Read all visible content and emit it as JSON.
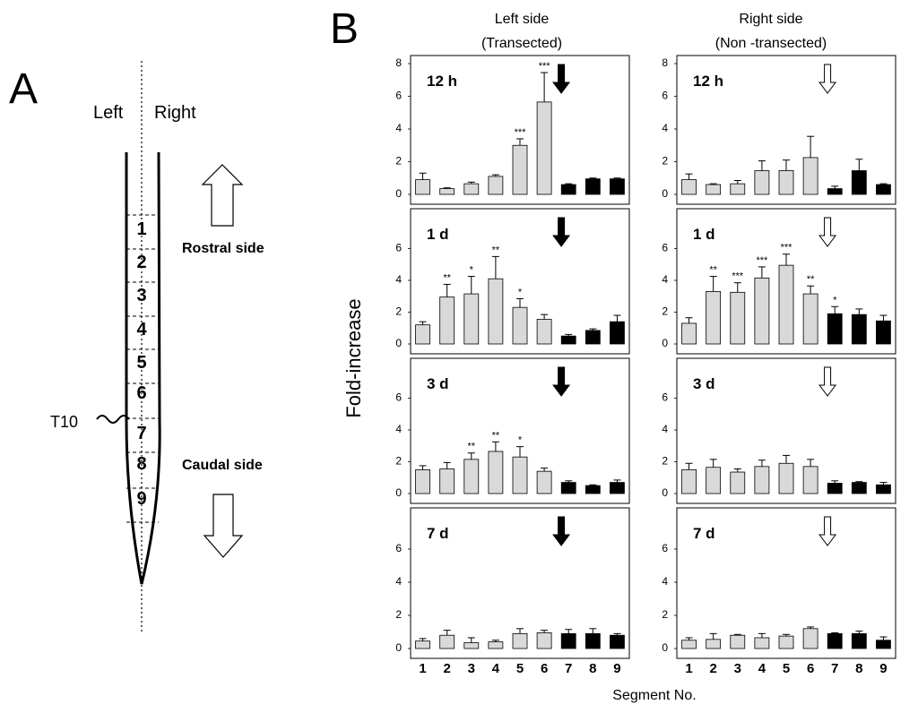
{
  "panel_labels": [
    "A",
    "B"
  ],
  "diagram": {
    "left": "Left",
    "right": "Right",
    "rostral": "Rostral side",
    "caudal": "Caudal side",
    "level": "T10",
    "segments": [
      "1",
      "2",
      "3",
      "4",
      "5",
      "6",
      "7",
      "8",
      "9"
    ]
  },
  "headers": [
    [
      "Left side",
      "(Transected)"
    ],
    [
      "Right side",
      "(Non -transected)"
    ]
  ],
  "y_label": "Fold-increase",
  "x_label": "Segment No.",
  "categories": [
    "1",
    "2",
    "3",
    "4",
    "5",
    "6",
    "7",
    "8",
    "9"
  ],
  "chart_data": [
    {
      "type": "bar",
      "title": "12 h",
      "ylim": [
        0,
        8
      ],
      "yticks": [
        0,
        2,
        4,
        6,
        8
      ],
      "arrow_color": "#000000",
      "colors": [
        "#d9d9d9",
        "#d9d9d9",
        "#d9d9d9",
        "#d9d9d9",
        "#d9d9d9",
        "#d9d9d9",
        "#000000",
        "#000000",
        "#000000"
      ],
      "values": [
        0.9,
        0.35,
        0.65,
        1.1,
        3.0,
        5.65,
        0.6,
        0.95,
        0.95
      ],
      "errors": [
        0.4,
        0.05,
        0.1,
        0.1,
        0.4,
        1.8,
        0.05,
        0.05,
        0.05
      ],
      "significance": [
        null,
        null,
        null,
        null,
        "***",
        "***",
        null,
        null,
        null
      ]
    },
    {
      "type": "bar",
      "title": "12 h",
      "ylim": [
        0,
        8
      ],
      "yticks": [
        0,
        2,
        4,
        6,
        8
      ],
      "arrow_color": "#ffffff",
      "colors": [
        "#d9d9d9",
        "#d9d9d9",
        "#d9d9d9",
        "#d9d9d9",
        "#d9d9d9",
        "#d9d9d9",
        "#000000",
        "#000000",
        "#000000"
      ],
      "values": [
        0.9,
        0.6,
        0.65,
        1.45,
        1.45,
        2.25,
        0.35,
        1.45,
        0.6
      ],
      "errors": [
        0.35,
        0.05,
        0.2,
        0.6,
        0.65,
        1.3,
        0.15,
        0.7,
        0.05
      ],
      "significance": [
        null,
        null,
        null,
        null,
        null,
        null,
        null,
        null,
        null
      ]
    },
    {
      "type": "bar",
      "title": "1 d",
      "ylim": [
        0,
        8
      ],
      "yticks": [
        0,
        2,
        4,
        6
      ],
      "arrow_color": "#000000",
      "colors": [
        "#d9d9d9",
        "#d9d9d9",
        "#d9d9d9",
        "#d9d9d9",
        "#d9d9d9",
        "#d9d9d9",
        "#000000",
        "#000000",
        "#000000"
      ],
      "values": [
        1.2,
        2.95,
        3.15,
        4.1,
        2.3,
        1.55,
        0.5,
        0.85,
        1.4
      ],
      "errors": [
        0.2,
        0.8,
        1.1,
        1.4,
        0.55,
        0.3,
        0.1,
        0.1,
        0.4
      ],
      "significance": [
        null,
        "**",
        "*",
        "**",
        "*",
        null,
        null,
        null,
        null
      ]
    },
    {
      "type": "bar",
      "title": "1 d",
      "ylim": [
        0,
        8
      ],
      "yticks": [
        0,
        2,
        4,
        6
      ],
      "arrow_color": "#ffffff",
      "colors": [
        "#d9d9d9",
        "#d9d9d9",
        "#d9d9d9",
        "#d9d9d9",
        "#d9d9d9",
        "#d9d9d9",
        "#000000",
        "#000000",
        "#000000"
      ],
      "values": [
        1.3,
        3.3,
        3.25,
        4.15,
        4.95,
        3.15,
        1.9,
        1.85,
        1.45
      ],
      "errors": [
        0.35,
        0.95,
        0.6,
        0.7,
        0.7,
        0.5,
        0.45,
        0.35,
        0.35
      ],
      "significance": [
        null,
        "**",
        "***",
        "***",
        "***",
        "**",
        "*",
        null,
        null
      ]
    },
    {
      "type": "bar",
      "title": "3 d",
      "ylim": [
        0,
        8
      ],
      "yticks": [
        0,
        2,
        4,
        6
      ],
      "arrow_color": "#000000",
      "colors": [
        "#d9d9d9",
        "#d9d9d9",
        "#d9d9d9",
        "#d9d9d9",
        "#d9d9d9",
        "#d9d9d9",
        "#000000",
        "#000000",
        "#000000"
      ],
      "values": [
        1.5,
        1.55,
        2.15,
        2.65,
        2.3,
        1.4,
        0.7,
        0.5,
        0.7
      ],
      "errors": [
        0.25,
        0.4,
        0.4,
        0.6,
        0.65,
        0.2,
        0.1,
        0.05,
        0.15
      ],
      "significance": [
        null,
        null,
        "**",
        "**",
        "*",
        null,
        null,
        null,
        null
      ]
    },
    {
      "type": "bar",
      "title": "3 d",
      "ylim": [
        0,
        8
      ],
      "yticks": [
        0,
        2,
        4,
        6
      ],
      "arrow_color": "#ffffff",
      "colors": [
        "#d9d9d9",
        "#d9d9d9",
        "#d9d9d9",
        "#d9d9d9",
        "#d9d9d9",
        "#d9d9d9",
        "#000000",
        "#000000",
        "#000000"
      ],
      "values": [
        1.5,
        1.65,
        1.35,
        1.7,
        1.9,
        1.7,
        0.65,
        0.7,
        0.55
      ],
      "errors": [
        0.4,
        0.5,
        0.2,
        0.4,
        0.5,
        0.45,
        0.15,
        0.05,
        0.15
      ],
      "significance": [
        null,
        null,
        null,
        null,
        null,
        null,
        null,
        null,
        null
      ]
    },
    {
      "type": "bar",
      "title": "7 d",
      "ylim": [
        0,
        8
      ],
      "yticks": [
        0,
        2,
        4,
        6
      ],
      "arrow_color": "#000000",
      "colors": [
        "#d9d9d9",
        "#d9d9d9",
        "#d9d9d9",
        "#d9d9d9",
        "#d9d9d9",
        "#d9d9d9",
        "#000000",
        "#000000",
        "#000000"
      ],
      "values": [
        0.45,
        0.8,
        0.35,
        0.4,
        0.9,
        0.95,
        0.9,
        0.9,
        0.8
      ],
      "errors": [
        0.15,
        0.3,
        0.3,
        0.1,
        0.3,
        0.15,
        0.25,
        0.3,
        0.1
      ],
      "significance": [
        null,
        null,
        null,
        null,
        null,
        null,
        null,
        null,
        null
      ]
    },
    {
      "type": "bar",
      "title": "7 d",
      "ylim": [
        0,
        8
      ],
      "yticks": [
        0,
        2,
        4,
        6
      ],
      "arrow_color": "#ffffff",
      "colors": [
        "#d9d9d9",
        "#d9d9d9",
        "#d9d9d9",
        "#d9d9d9",
        "#d9d9d9",
        "#d9d9d9",
        "#000000",
        "#000000",
        "#000000"
      ],
      "values": [
        0.5,
        0.55,
        0.8,
        0.65,
        0.75,
        1.2,
        0.9,
        0.9,
        0.5
      ],
      "errors": [
        0.15,
        0.35,
        0.05,
        0.25,
        0.1,
        0.1,
        0.05,
        0.15,
        0.2
      ],
      "significance": [
        null,
        null,
        null,
        null,
        null,
        null,
        null,
        null,
        null
      ]
    }
  ]
}
